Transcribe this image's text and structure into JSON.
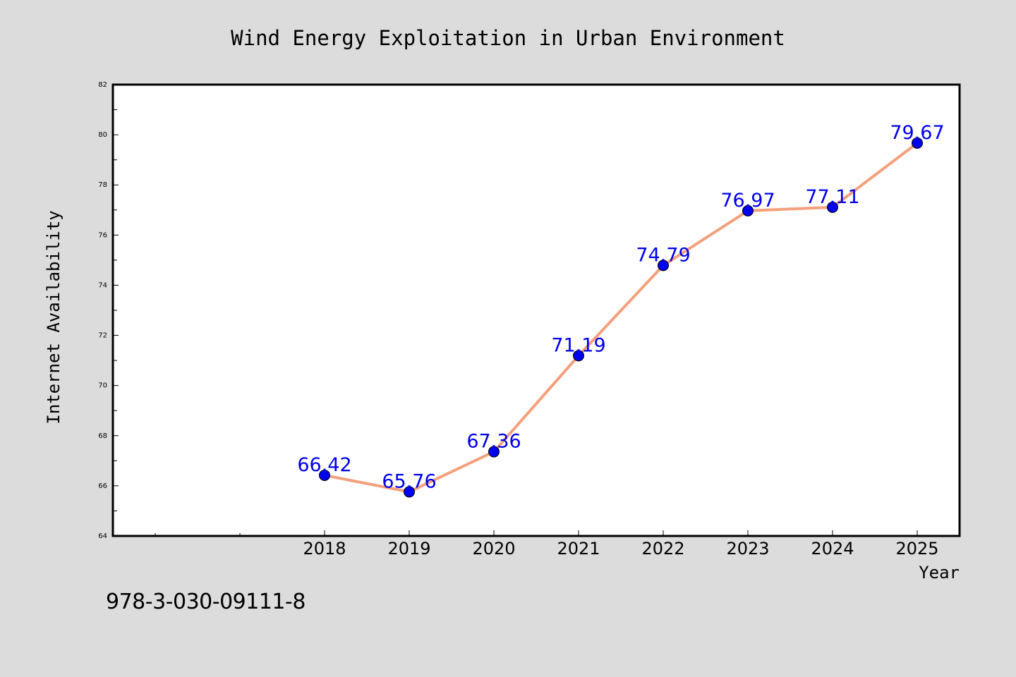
{
  "chart_data": {
    "type": "line",
    "title": "Wind Energy Exploitation in Urban Environment",
    "xlabel": "Year",
    "ylabel": "Internet Availability",
    "categories": [
      "2018",
      "2019",
      "2020",
      "2021",
      "2022",
      "2023",
      "2024",
      "2025"
    ],
    "series": [
      {
        "values": [
          66.42,
          65.76,
          67.36,
          71.19,
          74.79,
          76.97,
          77.11,
          79.67
        ],
        "labels": [
          "66.42",
          "65.76",
          "67.36",
          "71.19",
          "74.79",
          "76.97",
          "77.11",
          "79.67"
        ],
        "line_color": "#f4a07c",
        "marker_color": "#0000ee",
        "label_color": "#0000ee"
      }
    ],
    "ylim": [
      64,
      82
    ],
    "yticks": [
      "64",
      "66",
      "68",
      "70",
      "72",
      "74",
      "76",
      "78",
      "80",
      "82"
    ],
    "grid": false,
    "legend": false
  },
  "footer_code": "978-3-030-09111-8",
  "colors": {
    "background": "#dcdcdc",
    "plot_area": "#ffffff"
  }
}
